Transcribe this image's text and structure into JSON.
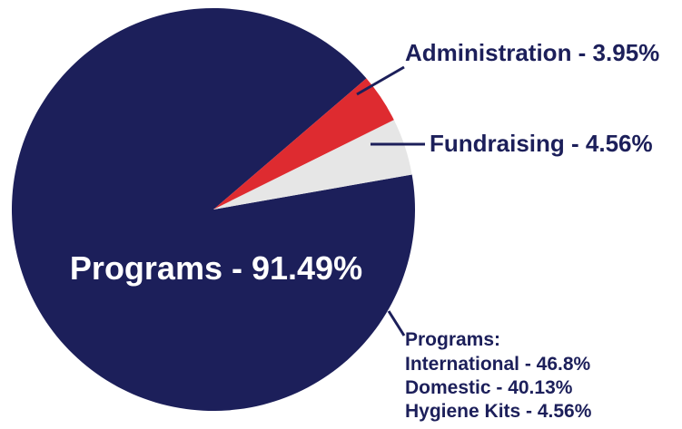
{
  "chart_data": {
    "type": "pie",
    "title": "",
    "slices": [
      {
        "name": "Programs",
        "value": 91.49,
        "label": "Programs - 91.49%",
        "color": "#1c1f5a"
      },
      {
        "name": "Fundraising",
        "value": 4.56,
        "label": "Fundraising - 4.56%",
        "color": "#e6e6e6"
      },
      {
        "name": "Administration",
        "value": 3.95,
        "label": "Administration - 3.95%",
        "color": "#de2b30"
      }
    ],
    "breakdown": {
      "heading": "Programs:",
      "items": [
        "International - 46.8%",
        "Domestic - 40.13%",
        "Hygiene Kits - 4.56%"
      ]
    }
  }
}
